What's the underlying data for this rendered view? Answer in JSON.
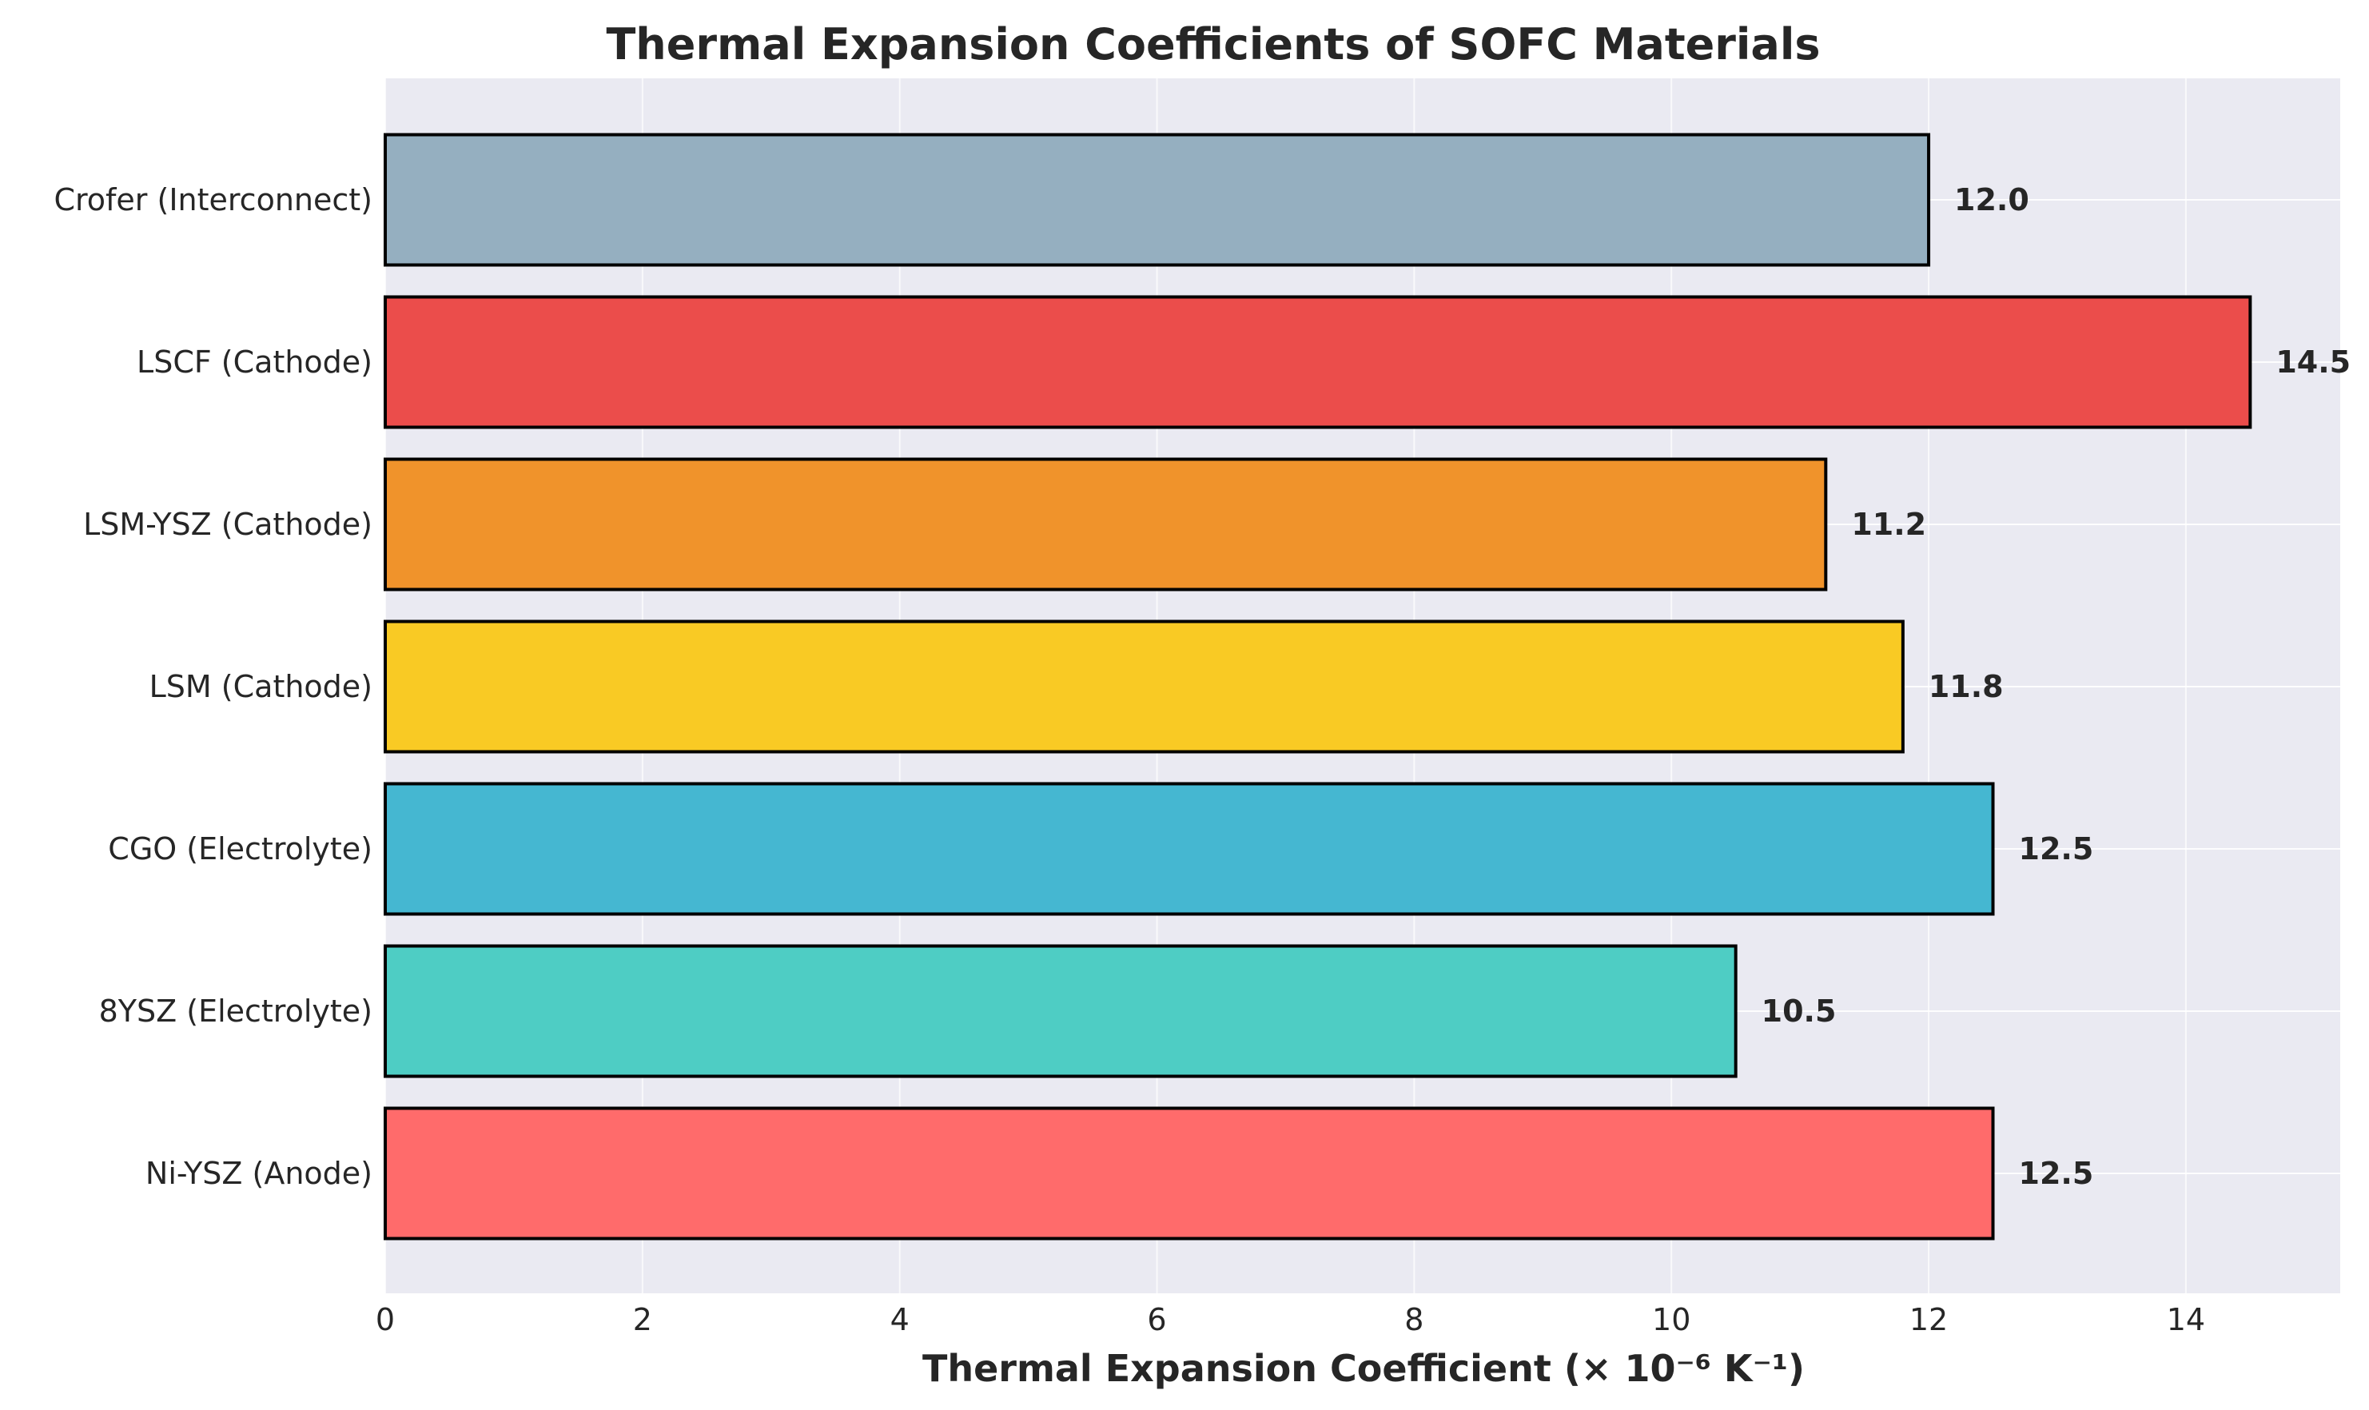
{
  "chart_data": {
    "type": "bar",
    "orientation": "horizontal",
    "title": "Thermal Expansion Coefficients of SOFC Materials",
    "xlabel": "Thermal Expansion Coefficient (× 10⁻⁶ K⁻¹)",
    "ylabel": "",
    "xlim": [
      0,
      15.2
    ],
    "xticks": [
      "0",
      "2",
      "4",
      "6",
      "8",
      "10",
      "12",
      "14"
    ],
    "grid": true,
    "categories": [
      "Ni-YSZ (Anode)",
      "8YSZ (Electrolyte)",
      "CGO (Electrolyte)",
      "LSM (Cathode)",
      "LSM-YSZ (Cathode)",
      "LSCF (Cathode)",
      "Crofer (Interconnect)"
    ],
    "values": [
      12.5,
      10.5,
      12.5,
      11.8,
      11.2,
      14.5,
      12.0
    ],
    "value_labels": [
      "12.5",
      "10.5",
      "12.5",
      "11.8",
      "11.2",
      "14.5",
      "12.0"
    ],
    "colors": [
      "#ff6b6b",
      "#4ecdc4",
      "#45b7d1",
      "#f9ca24",
      "#f0932b",
      "#eb4d4b",
      "#95afc0"
    ],
    "edge_color": "#000000",
    "background_color": "#eaeaf2",
    "grid_color": "#ffffff"
  }
}
